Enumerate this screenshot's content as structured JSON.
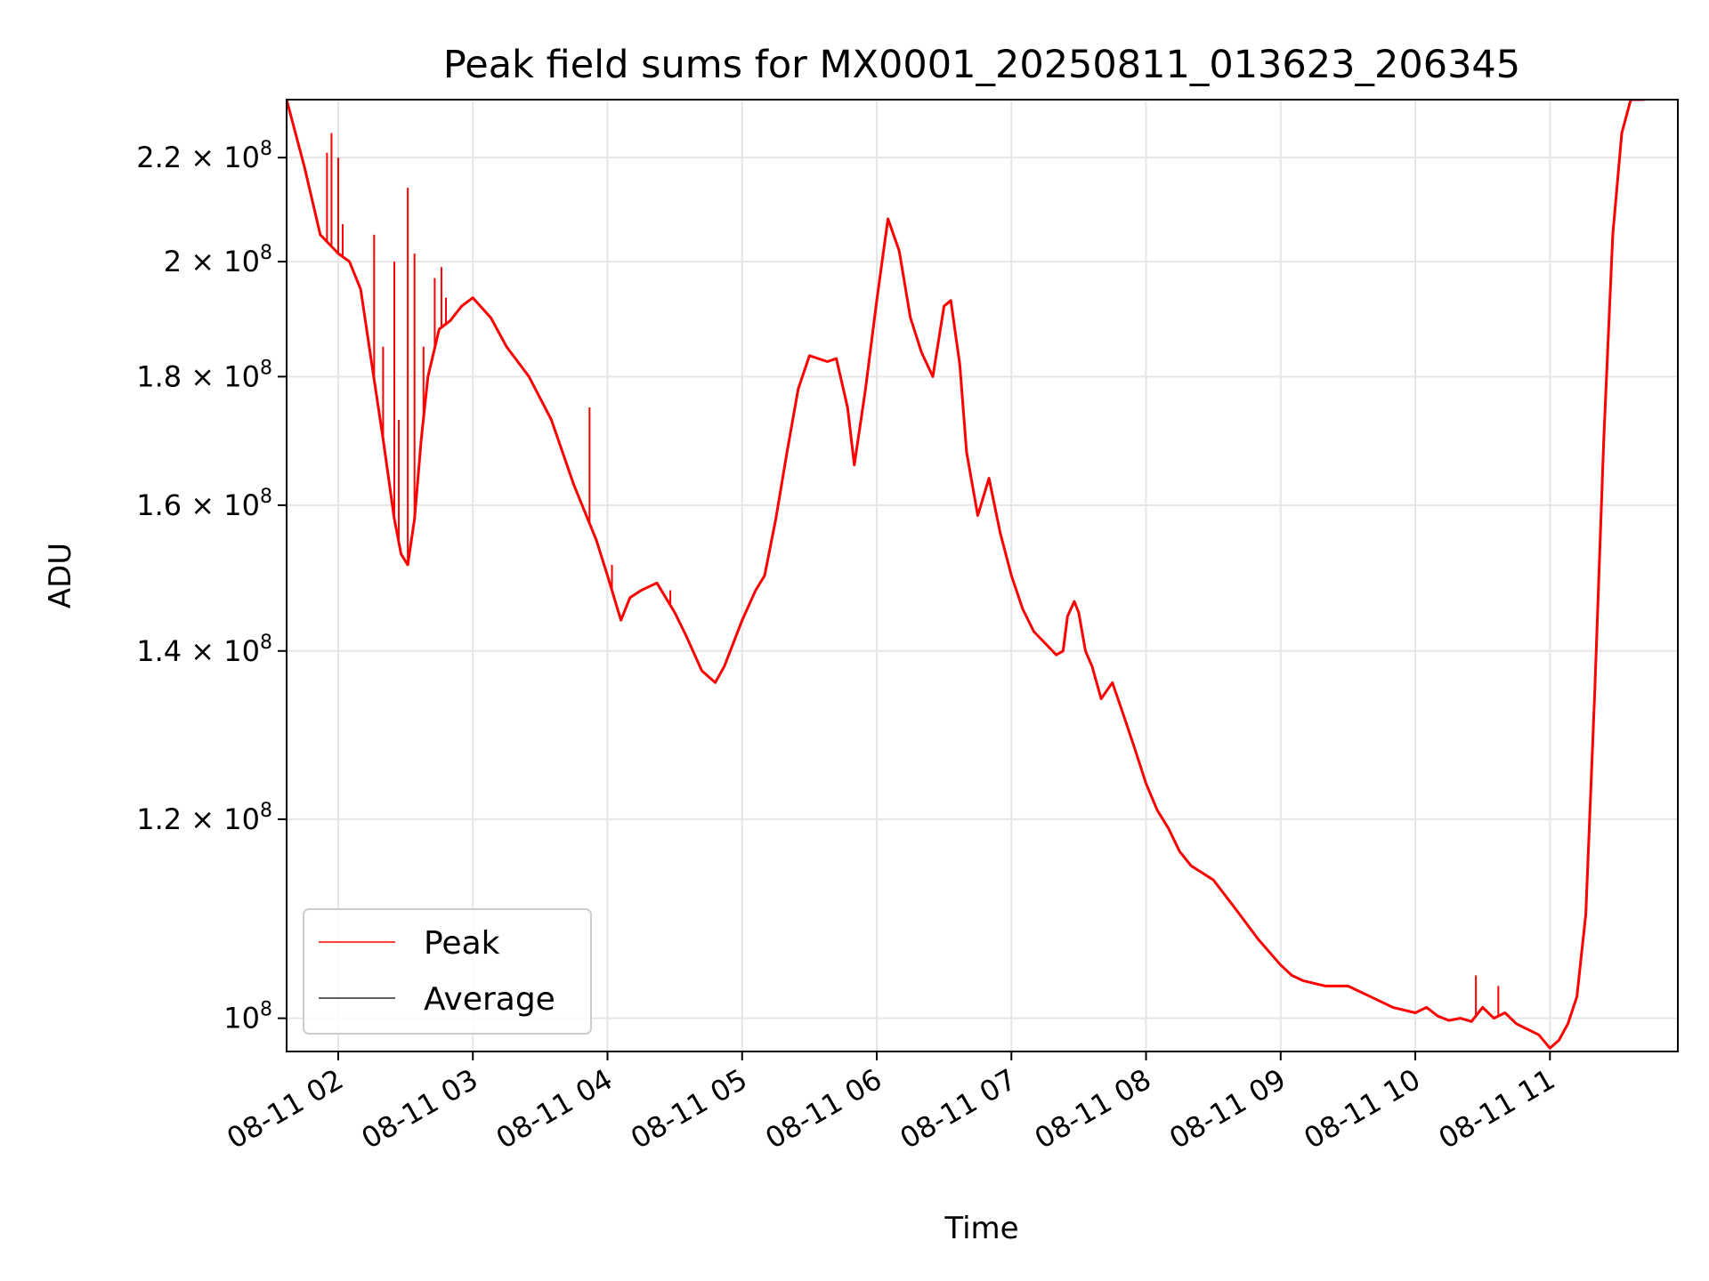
{
  "chart_data": {
    "type": "line",
    "title": "Peak field sums for MX0001_20250811_013623_206345",
    "xlabel": "Time",
    "ylabel": "ADU",
    "y_scale": "log",
    "ylim": [
      97000000,
      232000000
    ],
    "xlim": [
      "08-11 01:37",
      "08-11 11:57"
    ],
    "grid": true,
    "legend_position": "bottom-left",
    "x_ticks": [
      {
        "time": "08-11 02:00",
        "label": "08-11 02"
      },
      {
        "time": "08-11 03:00",
        "label": "08-11 03"
      },
      {
        "time": "08-11 04:00",
        "label": "08-11 04"
      },
      {
        "time": "08-11 05:00",
        "label": "08-11 05"
      },
      {
        "time": "08-11 06:00",
        "label": "08-11 06"
      },
      {
        "time": "08-11 07:00",
        "label": "08-11 07"
      },
      {
        "time": "08-11 08:00",
        "label": "08-11 08"
      },
      {
        "time": "08-11 09:00",
        "label": "08-11 09"
      },
      {
        "time": "08-11 10:00",
        "label": "08-11 10"
      },
      {
        "time": "08-11 11:00",
        "label": "08-11 11"
      }
    ],
    "y_ticks": [
      {
        "value": 100000000,
        "mantissa": "",
        "exponent": "8"
      },
      {
        "value": 120000000,
        "mantissa": "1.2",
        "exponent": "8"
      },
      {
        "value": 140000000,
        "mantissa": "1.4",
        "exponent": "8"
      },
      {
        "value": 160000000,
        "mantissa": "1.6",
        "exponent": "8"
      },
      {
        "value": 180000000,
        "mantissa": "1.8",
        "exponent": "8"
      },
      {
        "value": 200000000,
        "mantissa": "2",
        "exponent": "8"
      },
      {
        "value": 220000000,
        "mantissa": "2.2",
        "exponent": "8"
      }
    ],
    "average_series": {
      "name": "Average",
      "color": "#000000",
      "x": [
        "08-11 01:37",
        "08-11 01:45",
        "08-11 01:52",
        "08-11 02:00",
        "08-11 02:05",
        "08-11 02:10",
        "08-11 02:15",
        "08-11 02:20",
        "08-11 02:25",
        "08-11 02:28",
        "08-11 02:31",
        "08-11 02:34",
        "08-11 02:37",
        "08-11 02:40",
        "08-11 02:45",
        "08-11 02:50",
        "08-11 02:55",
        "08-11 03:00",
        "08-11 03:08",
        "08-11 03:15",
        "08-11 03:25",
        "08-11 03:35",
        "08-11 03:45",
        "08-11 03:55",
        "08-11 04:00",
        "08-11 04:06",
        "08-11 04:10",
        "08-11 04:15",
        "08-11 04:22",
        "08-11 04:30",
        "08-11 04:35",
        "08-11 04:42",
        "08-11 04:48",
        "08-11 04:52",
        "08-11 05:00",
        "08-11 05:06",
        "08-11 05:10",
        "08-11 05:15",
        "08-11 05:20",
        "08-11 05:25",
        "08-11 05:30",
        "08-11 05:38",
        "08-11 05:42",
        "08-11 05:47",
        "08-11 05:50",
        "08-11 05:55",
        "08-11 06:00",
        "08-11 06:05",
        "08-11 06:10",
        "08-11 06:15",
        "08-11 06:20",
        "08-11 06:25",
        "08-11 06:30",
        "08-11 06:33",
        "08-11 06:37",
        "08-11 06:40",
        "08-11 06:45",
        "08-11 06:50",
        "08-11 06:55",
        "08-11 07:00",
        "08-11 07:05",
        "08-11 07:10",
        "08-11 07:15",
        "08-11 07:20",
        "08-11 07:23",
        "08-11 07:25",
        "08-11 07:28",
        "08-11 07:30",
        "08-11 07:33",
        "08-11 07:36",
        "08-11 07:40",
        "08-11 07:45",
        "08-11 07:50",
        "08-11 07:55",
        "08-11 08:00",
        "08-11 08:05",
        "08-11 08:10",
        "08-11 08:15",
        "08-11 08:20",
        "08-11 08:30",
        "08-11 08:40",
        "08-11 08:50",
        "08-11 09:00",
        "08-11 09:05",
        "08-11 09:10",
        "08-11 09:20",
        "08-11 09:30",
        "08-11 09:40",
        "08-11 09:50",
        "08-11 10:00",
        "08-11 10:05",
        "08-11 10:10",
        "08-11 10:15",
        "08-11 10:20",
        "08-11 10:25",
        "08-11 10:30",
        "08-11 10:35",
        "08-11 10:40",
        "08-11 10:45",
        "08-11 10:50",
        "08-11 10:55",
        "08-11 11:00",
        "08-11 11:04",
        "08-11 11:08",
        "08-11 11:12",
        "08-11 11:16",
        "08-11 11:20",
        "08-11 11:24",
        "08-11 11:28",
        "08-11 11:32",
        "08-11 11:36",
        "08-11 11:39",
        "08-11 11:42"
      ],
      "values": [
        234000000,
        218000000,
        205000000,
        201500000,
        200000000,
        195000000,
        182000000,
        170000000,
        158000000,
        153000000,
        151500000,
        158000000,
        170000000,
        180000000,
        188000000,
        189500000,
        192000000,
        193500000,
        190000000,
        185000000,
        180000000,
        173000000,
        163000000,
        155000000,
        150000000,
        144000000,
        147000000,
        148000000,
        149000000,
        145000000,
        142000000,
        137500000,
        136000000,
        138000000,
        144000000,
        148000000,
        150000000,
        158000000,
        168000000,
        178000000,
        183500000,
        182500000,
        183000000,
        175000000,
        166000000,
        178000000,
        193000000,
        208000000,
        202000000,
        190000000,
        184000000,
        180000000,
        192000000,
        193000000,
        182000000,
        168000000,
        158500000,
        164000000,
        156000000,
        150000000,
        145500000,
        142500000,
        141000000,
        139500000,
        140000000,
        144500000,
        146500000,
        145000000,
        140000000,
        138000000,
        134000000,
        136000000,
        132000000,
        128000000,
        124000000,
        121000000,
        119000000,
        116500000,
        115000000,
        113500000,
        110500000,
        107500000,
        105000000,
        104000000,
        103500000,
        103000000,
        103000000,
        102000000,
        101000000,
        100500000,
        101000000,
        100200000,
        99800000,
        100000000,
        99700000,
        101000000,
        100000000,
        100500000,
        99500000,
        99000000,
        98500000,
        97300000,
        98000000,
        99500000,
        102000000,
        110000000,
        135000000,
        170000000,
        205000000,
        225000000,
        234000000,
        234000000,
        234000000
      ]
    },
    "peak_series": {
      "name": "Peak",
      "color": "#ff0000",
      "spikes": [
        {
          "time": "08-11 01:55",
          "value": 221000000
        },
        {
          "time": "08-11 01:57",
          "value": 225000000
        },
        {
          "time": "08-11 02:00",
          "value": 220000000
        },
        {
          "time": "08-11 02:02",
          "value": 207000000
        },
        {
          "time": "08-11 02:16",
          "value": 205000000
        },
        {
          "time": "08-11 02:20",
          "value": 185000000
        },
        {
          "time": "08-11 02:25",
          "value": 200000000
        },
        {
          "time": "08-11 02:27",
          "value": 173000000
        },
        {
          "time": "08-11 02:31",
          "value": 214000000
        },
        {
          "time": "08-11 02:34",
          "value": 201500000
        },
        {
          "time": "08-11 02:38",
          "value": 185000000
        },
        {
          "time": "08-11 02:43",
          "value": 197000000
        },
        {
          "time": "08-11 02:46",
          "value": 199000000
        },
        {
          "time": "08-11 02:48",
          "value": 193500000
        },
        {
          "time": "08-11 03:52",
          "value": 175000000
        },
        {
          "time": "08-11 04:02",
          "value": 151500000
        },
        {
          "time": "08-11 04:28",
          "value": 148000000
        },
        {
          "time": "08-11 10:27",
          "value": 104000000
        },
        {
          "time": "08-11 10:37",
          "value": 103000000
        }
      ]
    }
  }
}
